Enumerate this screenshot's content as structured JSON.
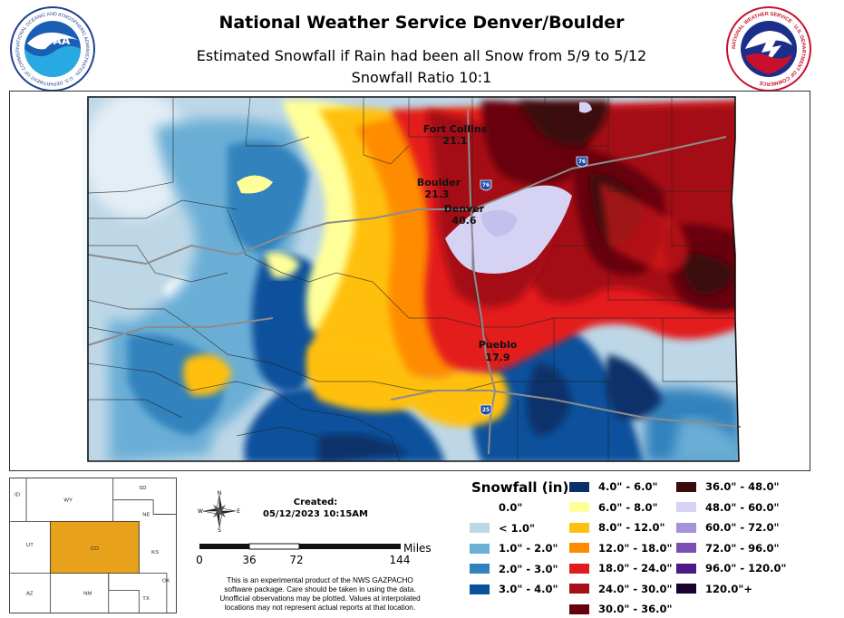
{
  "header": {
    "title": "National Weather Service Denver/Boulder",
    "subtitle_1": "Estimated Snowfall if Rain had been all Snow from 5/9 to 5/12",
    "subtitle_2": "Snowfall Ratio 10:1",
    "left_logo_text": "NOAA",
    "left_logo_ring_text": "NATIONAL OCEANIC AND ATMOSPHERIC ADMINISTRATION · U.S. DEPARTMENT OF COMMERCE",
    "right_logo_ring_text": "NATIONAL WEATHER SERVICE · U.S. DEPARTMENT OF COMMERCE"
  },
  "map": {
    "cities": [
      {
        "name": "Fort Collins",
        "value": "21.1"
      },
      {
        "name": "Boulder",
        "value": "21.3"
      },
      {
        "name": "Denver",
        "value": "40.6"
      },
      {
        "name": "Pueblo",
        "value": "17.9"
      }
    ],
    "highways": [
      {
        "label": "76"
      },
      {
        "label": "76"
      },
      {
        "label": "25"
      }
    ]
  },
  "locator": {
    "states": [
      "ID",
      "WY",
      "SD",
      "NE",
      "UT",
      "CO",
      "KS",
      "AZ",
      "NM",
      "OK",
      "TX"
    ],
    "highlight_color": "#e8a11b"
  },
  "compass": {
    "n": "N",
    "s": "S",
    "e": "E",
    "w": "W"
  },
  "created": {
    "label": "Created:",
    "timestamp": "05/12/2023 10:15AM"
  },
  "scale": {
    "ticks": [
      "0",
      "36",
      "72",
      "144"
    ],
    "unit": "Miles"
  },
  "disclaimer": [
    "This is an experimental product of the NWS GAZPACHO",
    "software package. Care should be taken in using the data.",
    "Unofficial observations may be plotted. Values at interpolated",
    "locations may not represent actual reports at that location."
  ],
  "legend": {
    "title": "Snowfall (in)",
    "items": [
      {
        "label": "0.0\"",
        "color": "#ffffff"
      },
      {
        "label": "< 1.0\"",
        "color": "#bdd7e7"
      },
      {
        "label": "1.0\" - 2.0\"",
        "color": "#6baed6"
      },
      {
        "label": "2.0\" - 3.0\"",
        "color": "#3182bd"
      },
      {
        "label": "3.0\" - 4.0\"",
        "color": "#08519c"
      },
      {
        "label": "4.0\" - 6.0\"",
        "color": "#08306b"
      },
      {
        "label": "6.0\" - 8.0\"",
        "color": "#ffff99"
      },
      {
        "label": "8.0\" - 12.0\"",
        "color": "#ffc00f"
      },
      {
        "label": "12.0\" - 18.0\"",
        "color": "#ff8c00"
      },
      {
        "label": "18.0\" - 24.0\"",
        "color": "#e31a1c"
      },
      {
        "label": "24.0\" - 30.0\"",
        "color": "#a50f15"
      },
      {
        "label": "30.0\" - 36.0\"",
        "color": "#67000d"
      },
      {
        "label": "36.0\" - 48.0\"",
        "color": "#3b0a0a"
      },
      {
        "label": "48.0\" - 60.0\"",
        "color": "#d5d2f3"
      },
      {
        "label": "60.0\" - 72.0\"",
        "color": "#a692d8"
      },
      {
        "label": "72.0\" - 96.0\"",
        "color": "#7b4fb3"
      },
      {
        "label": "96.0\" - 120.0\"",
        "color": "#4a1a86"
      },
      {
        "label": "120.0\"+",
        "color": "#1a0033"
      }
    ]
  }
}
